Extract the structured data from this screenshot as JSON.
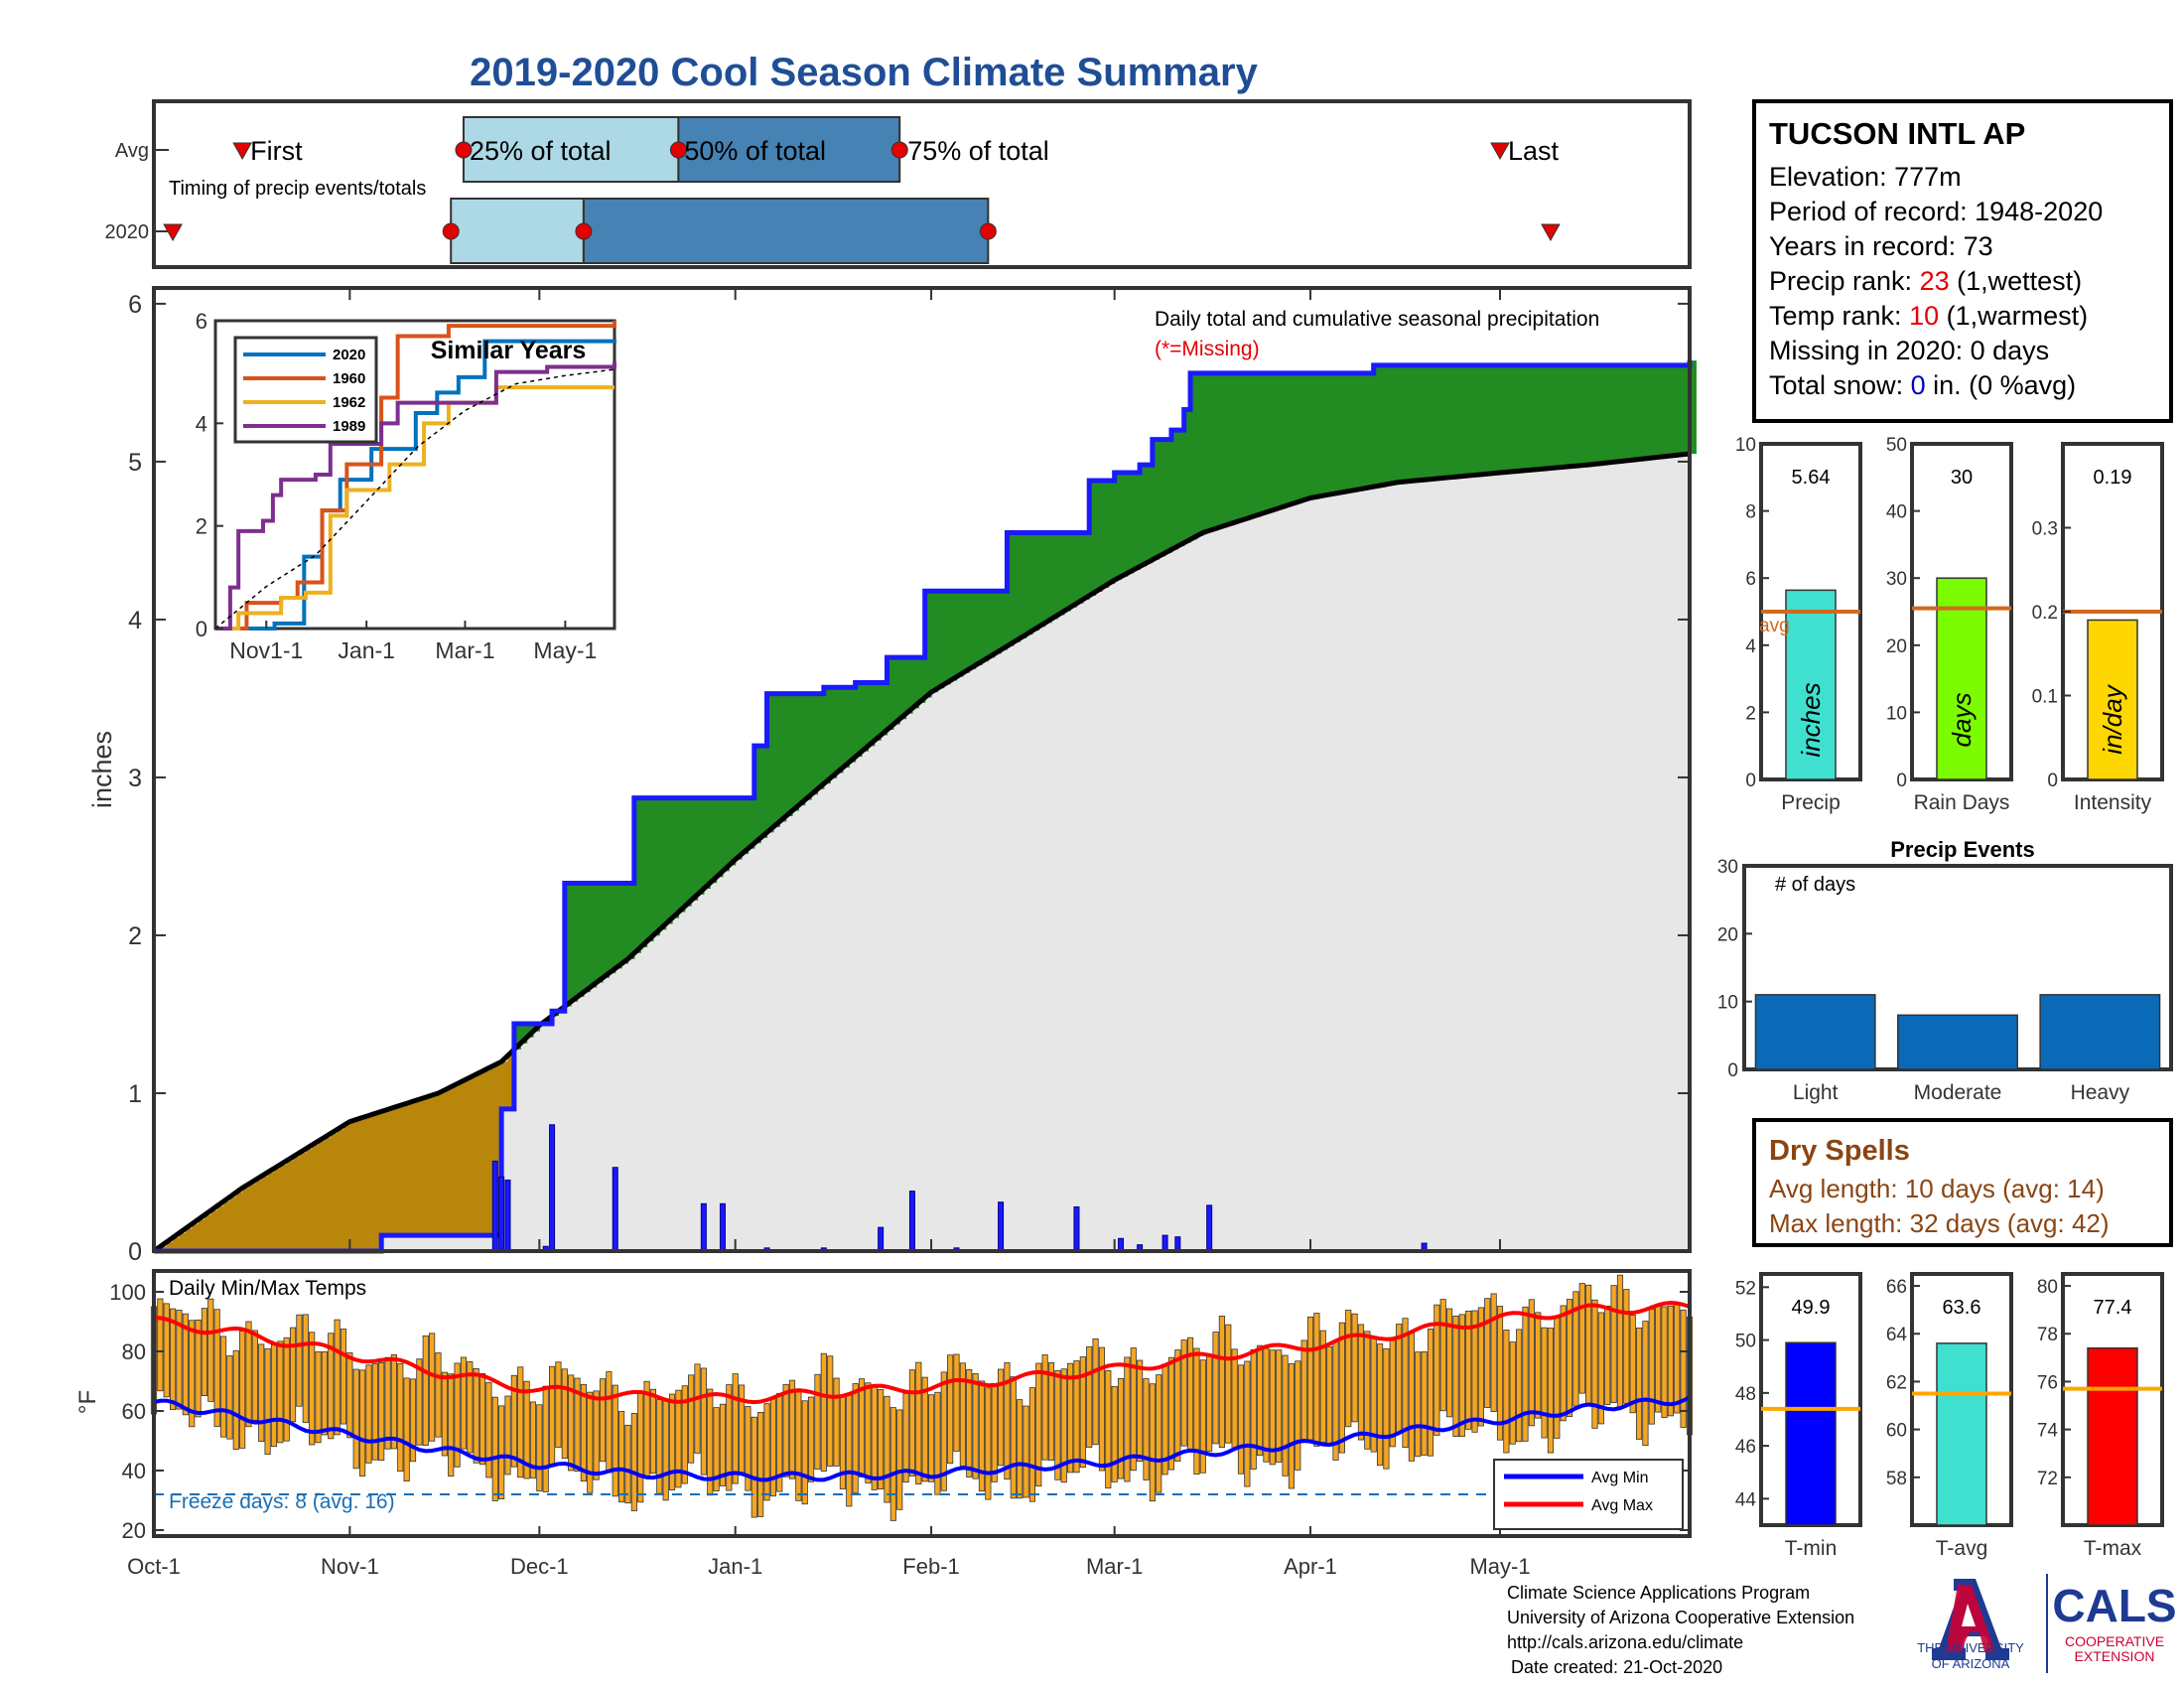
{
  "title": "2019-2020 Cool Season Climate Summary",
  "station": {
    "name": "TUCSON INTL AP",
    "elevation": "Elevation: 777m",
    "period": "Period of record: 1948-2020",
    "years": "Years in record: 73",
    "precip_rank_label": "Precip rank: ",
    "precip_rank_value": "23",
    "precip_rank_note": " (1,wettest)",
    "temp_rank_label": "Temp rank: ",
    "temp_rank_value": "10",
    "temp_rank_note": " (1,warmest)",
    "missing": "Missing in 2020: 0 days",
    "snow_label": "Total snow: ",
    "snow_value": "0",
    "snow_note": " in. (0 %avg)"
  },
  "timing": {
    "row_avg": "Avg",
    "row_2020": "2020",
    "first": "First",
    "last": "Last",
    "p25": "25% of total",
    "p50": "50% of total",
    "p75": "75% of total",
    "caption": "Timing of precip events/totals",
    "avg_marks": {
      "first": "2019-10-15",
      "p25": "2019-11-19",
      "p50": "2019-12-23",
      "p75": "2020-01-27",
      "last": "2020-05-01"
    },
    "y2020_marks": {
      "first": "2019-10-04",
      "p25": "2019-11-17",
      "p50": "2019-12-08",
      "p75": "2020-02-10",
      "last": "2020-05-09"
    }
  },
  "main_chart": {
    "ylabel": "inches",
    "annotation": "Daily total and cumulative seasonal precipitation",
    "missing_note": "(*=Missing)",
    "yticks": [
      "0",
      "1",
      "2",
      "3",
      "4",
      "5",
      "6"
    ],
    "xticks": [
      "Oct-1",
      "Nov-1",
      "Dec-1",
      "Jan-1",
      "Feb-1",
      "Mar-1",
      "Apr-1",
      "May-1"
    ]
  },
  "inset": {
    "title": "Similar Years",
    "yticks": [
      "0",
      "2",
      "4",
      "6"
    ],
    "xticks": [
      "Nov1-1",
      "Jan-1",
      "Mar-1",
      "May-1"
    ],
    "legend": [
      "2020",
      "1960",
      "1962",
      "1989"
    ]
  },
  "bars_top": {
    "precip": {
      "value_label": "5.64",
      "unit": "inches",
      "xlabel": "Precip",
      "yticks": [
        "0",
        "2",
        "4",
        "6",
        "8",
        "10"
      ],
      "avg_label": "avg"
    },
    "raindays": {
      "value_label": "30",
      "unit": "days",
      "xlabel": "Rain Days",
      "yticks": [
        "0",
        "10",
        "20",
        "30",
        "40",
        "50"
      ]
    },
    "intensity": {
      "value_label": "0.19",
      "unit": "in/day",
      "xlabel": "Intensity",
      "yticks": [
        "0",
        "0.1",
        "0.2",
        "0.3"
      ]
    }
  },
  "precip_events": {
    "title": "Precip Events",
    "ylabel": "# of days",
    "yticks": [
      "0",
      "10",
      "20",
      "30"
    ],
    "categories": [
      "Light",
      "Moderate",
      "Heavy"
    ]
  },
  "dry_spells": {
    "title": "Dry Spells",
    "avg": "Avg length: 10 days (avg: 14)",
    "max": "Max length: 32 days (avg: 42)"
  },
  "temp_chart": {
    "title": "Daily Min/Max Temps",
    "ylabel": "°F",
    "yticks": [
      "20",
      "40",
      "60",
      "80",
      "100"
    ],
    "freeze": "Freeze days: 8 (avg. 16)",
    "legend_min": "Avg Min",
    "legend_max": "Avg Max"
  },
  "temp_bars": {
    "tmin": {
      "value_label": "49.9",
      "xlabel": "T-min",
      "yticks": [
        "44",
        "46",
        "48",
        "50",
        "52"
      ]
    },
    "tavg": {
      "value_label": "63.6",
      "xlabel": "T-avg",
      "yticks": [
        "58",
        "60",
        "62",
        "64",
        "66"
      ]
    },
    "tmax": {
      "value_label": "77.4",
      "xlabel": "T-max",
      "yticks": [
        "72",
        "74",
        "76",
        "78",
        "80"
      ]
    }
  },
  "footer": {
    "line1": "Climate Science Applications Program",
    "line2": "University of Arizona Cooperative Extension",
    "line3": "http://cals.arizona.edu/climate",
    "line4": "Date created: 21-Oct-2020"
  },
  "logos": {
    "ua_line1": "THE UNIVERSITY",
    "ua_line2": "OF ARIZONA",
    "cals": "CALS",
    "cals_line1": "COOPERATIVE",
    "cals_line2": "EXTENSION"
  },
  "colors": {
    "title": "#1f4e96",
    "cum_2020": "#1a1aff",
    "cum_avg": "#000000",
    "excess_fill": "#228b22",
    "deficit_fill": "#b8860b",
    "avg_fill": "#e8e7e7",
    "precip_bar": "#40e0d0",
    "raindays_bar": "#7cfc00",
    "intensity_bar": "#ffd700",
    "avg_line": "#d2691e",
    "events_bar": "#0a6ab8",
    "temp_bar": "#f4a623",
    "avg_min": "#0000ff",
    "avg_max": "#ff0000",
    "dry_spell_text": "#8b4513",
    "rank_red": "#e60000",
    "snow_blue": "#0000cc",
    "tmin_bar": "#0000ff",
    "tavg_bar": "#40e0d0",
    "tmax_bar": "#ff0000",
    "tavg_line": "#ffa500"
  },
  "chart_data": [
    {
      "type": "area",
      "name": "cumulative_precip",
      "ylabel": "inches",
      "ylim": [
        0,
        6.1
      ],
      "xlim": [
        "2019-10-01",
        "2020-05-31"
      ],
      "series": [
        {
          "name": "2020",
          "points": [
            [
              "2019-10-01",
              0
            ],
            [
              "2019-11-05",
              0
            ],
            [
              "2019-11-06",
              0.1
            ],
            [
              "2019-11-24",
              0.1
            ],
            [
              "2019-11-25",
              0.9
            ],
            [
              "2019-11-27",
              1.44
            ],
            [
              "2019-12-02",
              1.44
            ],
            [
              "2019-12-03",
              1.52
            ],
            [
              "2019-12-05",
              2.33
            ],
            [
              "2019-12-15",
              2.33
            ],
            [
              "2019-12-16",
              2.87
            ],
            [
              "2020-01-03",
              2.87
            ],
            [
              "2020-01-04",
              3.2
            ],
            [
              "2020-01-06",
              3.53
            ],
            [
              "2020-01-15",
              3.57
            ],
            [
              "2020-01-20",
              3.6
            ],
            [
              "2020-01-25",
              3.76
            ],
            [
              "2020-01-31",
              4.18
            ],
            [
              "2020-02-12",
              4.18
            ],
            [
              "2020-02-13",
              4.55
            ],
            [
              "2020-02-25",
              4.55
            ],
            [
              "2020-02-26",
              4.88
            ],
            [
              "2020-03-01",
              4.93
            ],
            [
              "2020-03-05",
              4.98
            ],
            [
              "2020-03-07",
              5.14
            ],
            [
              "2020-03-10",
              5.2
            ],
            [
              "2020-03-12",
              5.33
            ],
            [
              "2020-03-13",
              5.56
            ],
            [
              "2020-04-10",
              5.56
            ],
            [
              "2020-04-11",
              5.61
            ],
            [
              "2020-05-31",
              5.64
            ]
          ]
        },
        {
          "name": "Avg",
          "points": [
            [
              "2019-10-01",
              0
            ],
            [
              "2019-10-15",
              0.4
            ],
            [
              "2019-11-01",
              0.82
            ],
            [
              "2019-11-15",
              1.0
            ],
            [
              "2019-11-25",
              1.2
            ],
            [
              "2019-12-01",
              1.43
            ],
            [
              "2019-12-15",
              1.85
            ],
            [
              "2020-01-01",
              2.48
            ],
            [
              "2020-01-15",
              2.96
            ],
            [
              "2020-02-01",
              3.54
            ],
            [
              "2020-02-15",
              3.88
            ],
            [
              "2020-03-01",
              4.25
            ],
            [
              "2020-03-15",
              4.55
            ],
            [
              "2020-04-01",
              4.77
            ],
            [
              "2020-04-15",
              4.87
            ],
            [
              "2020-05-01",
              4.93
            ],
            [
              "2020-05-15",
              4.98
            ],
            [
              "2020-05-31",
              5.05
            ]
          ]
        }
      ],
      "daily_precip": [
        [
          "2019-11-24",
          0.57
        ],
        [
          "2019-11-25",
          0.47
        ],
        [
          "2019-11-26",
          0.45
        ],
        [
          "2019-12-02",
          0.03
        ],
        [
          "2019-12-03",
          0.8
        ],
        [
          "2019-12-13",
          0.53
        ],
        [
          "2019-12-27",
          0.3
        ],
        [
          "2019-12-30",
          0.3
        ],
        [
          "2020-01-06",
          0.02
        ],
        [
          "2020-01-15",
          0.02
        ],
        [
          "2020-01-24",
          0.15
        ],
        [
          "2020-01-29",
          0.38
        ],
        [
          "2020-02-05",
          0.02
        ],
        [
          "2020-02-12",
          0.31
        ],
        [
          "2020-02-24",
          0.28
        ],
        [
          "2020-03-02",
          0.08
        ],
        [
          "2020-03-05",
          0.04
        ],
        [
          "2020-03-09",
          0.1
        ],
        [
          "2020-03-11",
          0.09
        ],
        [
          "2020-03-16",
          0.29
        ],
        [
          "2020-04-19",
          0.05
        ]
      ]
    },
    {
      "type": "line",
      "name": "similar_years",
      "ylim": [
        0,
        6
      ],
      "xlim": [
        "2019-10-01",
        "2020-05-31"
      ],
      "series": [
        {
          "name": "2020",
          "points": [
            [
              "2019-10-01",
              0
            ],
            [
              "2019-11-05",
              0
            ],
            [
              "2019-11-06",
              0.1
            ],
            [
              "2019-11-24",
              1.4
            ],
            [
              "2019-12-05",
              2.3
            ],
            [
              "2019-12-16",
              2.9
            ],
            [
              "2020-01-04",
              3.5
            ],
            [
              "2020-01-31",
              4.2
            ],
            [
              "2020-02-13",
              4.6
            ],
            [
              "2020-02-26",
              4.9
            ],
            [
              "2020-03-13",
              5.6
            ],
            [
              "2020-05-31",
              5.64
            ]
          ]
        },
        {
          "name": "1960",
          "points": [
            [
              "2019-10-01",
              0
            ],
            [
              "2019-10-20",
              0.5
            ],
            [
              "2019-11-10",
              0.6
            ],
            [
              "2019-11-20",
              0.9
            ],
            [
              "2019-12-05",
              2.3
            ],
            [
              "2019-12-20",
              3.2
            ],
            [
              "2020-01-10",
              4.5
            ],
            [
              "2020-01-20",
              5.7
            ],
            [
              "2020-02-20",
              5.9
            ],
            [
              "2020-03-20",
              5.9
            ],
            [
              "2020-05-31",
              6.0
            ]
          ]
        },
        {
          "name": "1962",
          "points": [
            [
              "2019-10-01",
              0
            ],
            [
              "2019-10-15",
              0.3
            ],
            [
              "2019-11-10",
              0.6
            ],
            [
              "2019-11-25",
              0.7
            ],
            [
              "2019-12-10",
              2.2
            ],
            [
              "2019-12-20",
              2.7
            ],
            [
              "2020-01-15",
              3.2
            ],
            [
              "2020-02-05",
              4.0
            ],
            [
              "2020-02-20",
              4.4
            ],
            [
              "2020-03-20",
              4.7
            ],
            [
              "2020-05-31",
              4.7
            ]
          ]
        },
        {
          "name": "1989",
          "points": [
            [
              "2019-10-01",
              0
            ],
            [
              "2019-10-10",
              0.8
            ],
            [
              "2019-10-15",
              1.9
            ],
            [
              "2019-10-30",
              2.1
            ],
            [
              "2019-11-05",
              2.6
            ],
            [
              "2019-11-10",
              2.9
            ],
            [
              "2019-12-01",
              3.0
            ],
            [
              "2019-12-10",
              3.6
            ],
            [
              "2020-01-10",
              4.0
            ],
            [
              "2020-01-20",
              4.4
            ],
            [
              "2020-02-20",
              4.4
            ],
            [
              "2020-03-20",
              5.0
            ],
            [
              "2020-04-20",
              5.1
            ],
            [
              "2020-05-31",
              5.2
            ]
          ]
        },
        {
          "name": "Avg",
          "points": [
            [
              "2019-10-01",
              0
            ],
            [
              "2019-11-01",
              0.82
            ],
            [
              "2019-12-01",
              1.43
            ],
            [
              "2020-01-01",
              2.48
            ],
            [
              "2020-02-01",
              3.54
            ],
            [
              "2020-03-01",
              4.25
            ],
            [
              "2020-04-01",
              4.77
            ],
            [
              "2020-05-01",
              4.93
            ],
            [
              "2020-05-31",
              5.05
            ]
          ]
        }
      ]
    },
    {
      "type": "bar",
      "name": "season_totals",
      "panels": [
        {
          "label": "Precip",
          "value": 5.64,
          "avg": 5.0,
          "ylim": [
            0,
            10
          ]
        },
        {
          "label": "Rain Days",
          "value": 30,
          "avg": 25.5,
          "ylim": [
            0,
            50
          ]
        },
        {
          "label": "Intensity",
          "value": 0.19,
          "avg": 0.2,
          "ylim": [
            0,
            0.4
          ]
        }
      ]
    },
    {
      "type": "bar",
      "name": "precip_events",
      "categories": [
        "Light",
        "Moderate",
        "Heavy"
      ],
      "values": [
        11,
        8,
        11
      ],
      "ylim": [
        0,
        30
      ]
    },
    {
      "type": "bar",
      "name": "daily_temps",
      "ylim": [
        18,
        107
      ],
      "ylabel": "°F",
      "freeze_line": 32,
      "avg_min": [
        [
          "2019-10-01",
          63
        ],
        [
          "2019-10-15",
          58
        ],
        [
          "2019-11-01",
          52
        ],
        [
          "2019-11-15",
          47
        ],
        [
          "2019-12-01",
          42
        ],
        [
          "2019-12-15",
          39
        ],
        [
          "2020-01-01",
          38
        ],
        [
          "2020-01-15",
          38
        ],
        [
          "2020-02-01",
          39
        ],
        [
          "2020-02-15",
          41
        ],
        [
          "2020-03-01",
          43
        ],
        [
          "2020-03-15",
          46
        ],
        [
          "2020-04-01",
          49
        ],
        [
          "2020-04-15",
          53
        ],
        [
          "2020-05-01",
          57
        ],
        [
          "2020-05-15",
          61
        ],
        [
          "2020-05-31",
          64
        ]
      ],
      "avg_max": [
        [
          "2019-10-01",
          90
        ],
        [
          "2019-10-15",
          86
        ],
        [
          "2019-11-01",
          79
        ],
        [
          "2019-11-15",
          73
        ],
        [
          "2019-12-01",
          67
        ],
        [
          "2019-12-15",
          65
        ],
        [
          "2020-01-01",
          64
        ],
        [
          "2020-01-15",
          66
        ],
        [
          "2020-02-01",
          68
        ],
        [
          "2020-02-15",
          71
        ],
        [
          "2020-03-01",
          74
        ],
        [
          "2020-03-15",
          78
        ],
        [
          "2020-04-01",
          82
        ],
        [
          "2020-04-15",
          86
        ],
        [
          "2020-05-01",
          91
        ],
        [
          "2020-05-15",
          94
        ],
        [
          "2020-05-31",
          95
        ]
      ]
    },
    {
      "type": "bar",
      "name": "temp_totals",
      "panels": [
        {
          "label": "T-min",
          "value": 49.9,
          "avg": 47.4,
          "ylim": [
            43,
            52.5
          ]
        },
        {
          "label": "T-avg",
          "value": 63.6,
          "avg": 61.5,
          "ylim": [
            56,
            66.5
          ]
        },
        {
          "label": "T-max",
          "value": 77.4,
          "avg": 75.7,
          "ylim": [
            70,
            80.5
          ]
        }
      ]
    }
  ]
}
